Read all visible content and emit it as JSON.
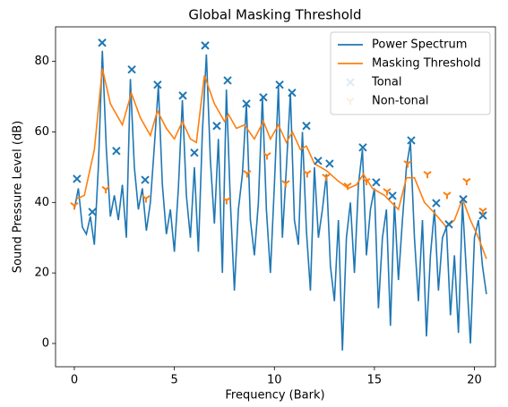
{
  "chart_data": {
    "type": "line",
    "title": "Global Masking Threshold",
    "xlabel": "Frequency (Bark)",
    "ylabel": "Sound Pressure Level (dB)",
    "xlim": [
      -0.94,
      21.05
    ],
    "ylim": [
      -6.6,
      89.8
    ],
    "xticks": [
      0,
      5,
      10,
      15,
      20
    ],
    "yticks": [
      0,
      20,
      40,
      60,
      80
    ],
    "grid": false,
    "legend": "upper right",
    "series": [
      {
        "name": "Power Spectrum",
        "kind": "line",
        "color": "#1f77b4",
        "x": [
          0,
          0.2,
          0.4,
          0.6,
          0.8,
          1,
          1.2,
          1.4,
          1.6,
          1.8,
          2,
          2.2,
          2.4,
          2.6,
          2.8,
          3,
          3.2,
          3.4,
          3.6,
          3.8,
          4,
          4.2,
          4.4,
          4.6,
          4.8,
          5,
          5.2,
          5.4,
          5.6,
          5.8,
          6,
          6.2,
          6.4,
          6.6,
          6.8,
          7,
          7.2,
          7.4,
          7.6,
          7.8,
          8,
          8.2,
          8.4,
          8.6,
          8.8,
          9,
          9.2,
          9.4,
          9.6,
          9.8,
          10,
          10.2,
          10.4,
          10.6,
          10.8,
          11,
          11.2,
          11.4,
          11.6,
          11.8,
          12,
          12.2,
          12.4,
          12.6,
          12.8,
          13,
          13.2,
          13.4,
          13.6,
          13.8,
          14,
          14.2,
          14.4,
          14.6,
          14.8,
          15,
          15.2,
          15.4,
          15.6,
          15.8,
          16,
          16.2,
          16.4,
          16.6,
          16.8,
          17,
          17.2,
          17.4,
          17.6,
          17.8,
          18,
          18.2,
          18.4,
          18.6,
          18.8,
          19,
          19.2,
          19.4,
          19.6,
          19.8,
          20,
          20.2,
          20.4,
          20.6
        ],
        "values": [
          38,
          44,
          33,
          31,
          36,
          28,
          50,
          83,
          55,
          36,
          42,
          35,
          45,
          30,
          75,
          50,
          38,
          44,
          32,
          40,
          56,
          73,
          45,
          31,
          38,
          26,
          44,
          69,
          42,
          30,
          50,
          26,
          60,
          82,
          52,
          34,
          58,
          20,
          72,
          40,
          15,
          38,
          48,
          68,
          35,
          25,
          40,
          70,
          38,
          20,
          45,
          73,
          30,
          50,
          71,
          35,
          28,
          60,
          32,
          15,
          50,
          30,
          38,
          48,
          22,
          12,
          35,
          -2,
          30,
          40,
          20,
          45,
          55,
          25,
          38,
          44,
          10,
          30,
          38,
          5,
          40,
          18,
          35,
          50,
          57,
          30,
          12,
          35,
          2,
          25,
          38,
          15,
          30,
          33,
          8,
          25,
          3,
          40,
          20,
          0,
          30,
          35,
          22,
          14
        ]
      },
      {
        "name": "Masking Threshold",
        "kind": "line",
        "color": "#ff7f0e",
        "x": [
          0.1,
          0.5,
          1.0,
          1.4,
          1.8,
          2.4,
          2.85,
          3.3,
          3.8,
          4.15,
          4.6,
          5.0,
          5.4,
          5.8,
          6.1,
          6.5,
          7.0,
          7.5,
          7.7,
          8.1,
          8.5,
          9.0,
          9.45,
          9.8,
          10.2,
          10.6,
          10.9,
          11.3,
          11.6,
          12.0,
          12.6,
          13.2,
          13.7,
          14.1,
          14.45,
          14.9,
          15.5,
          16.2,
          16.6,
          17.0,
          17.5,
          18.0,
          18.6,
          19.0,
          19.4,
          19.8,
          20.2,
          20.6
        ],
        "values": [
          41,
          42,
          55,
          78,
          68,
          62,
          71,
          64,
          59,
          66,
          61,
          58,
          63,
          58,
          57,
          76,
          68,
          63,
          65,
          61,
          62,
          58,
          63,
          58,
          62,
          57,
          60,
          55,
          56,
          51,
          49,
          46,
          44,
          45,
          48,
          44,
          42,
          38,
          47,
          47,
          40,
          37,
          33,
          35,
          41,
          35,
          30,
          24
        ]
      },
      {
        "name": "Tonal",
        "kind": "scatter",
        "marker": "x",
        "color": "#1f77b4",
        "x": [
          0.13,
          0.9,
          1.39,
          2.1,
          2.87,
          3.54,
          4.16,
          5.42,
          6.0,
          6.54,
          7.12,
          7.66,
          8.6,
          9.45,
          10.26,
          10.88,
          11.6,
          12.18,
          12.76,
          14.42,
          15.09,
          15.9,
          16.84,
          18.09,
          18.72,
          19.44,
          20.42
        ],
        "values": [
          46.7,
          37.3,
          85.3,
          54.6,
          77.7,
          46.4,
          73.4,
          70.3,
          54.1,
          84.5,
          61.7,
          74.6,
          68,
          69.8,
          73.4,
          71.1,
          61.7,
          51.8,
          51,
          55.6,
          45.7,
          41.9,
          57.6,
          39.8,
          33.8,
          40.9,
          36.3
        ]
      },
      {
        "name": "Non-tonal",
        "kind": "scatter",
        "marker": "tri_down",
        "color": "#ff7f0e",
        "x": [
          0,
          1.57,
          3.58,
          7.61,
          8.64,
          9.63,
          10.57,
          11.64,
          12.58,
          13.66,
          14.6,
          15.63,
          16.66,
          17.65,
          18.63,
          19.61,
          20.42
        ],
        "values": [
          39.1,
          43.7,
          41.1,
          40.6,
          48.2,
          53.3,
          45.4,
          48.2,
          47.2,
          44.7,
          46,
          43.1,
          51,
          48,
          42.1,
          46,
          37.6
        ]
      }
    ]
  }
}
